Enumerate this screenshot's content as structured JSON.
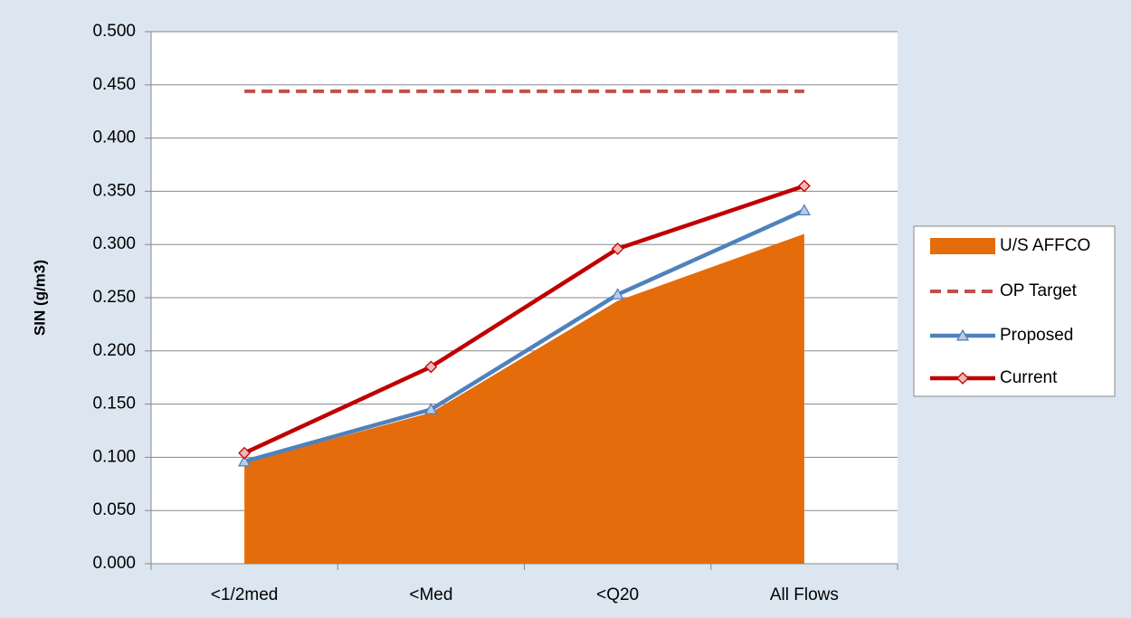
{
  "chart_data": {
    "type": "line",
    "y_label": "SIN (g/m3)",
    "categories": [
      "<1/2med",
      "<Med",
      "<Q20",
      "All Flows"
    ],
    "series": [
      {
        "name": "U/S AFFCO",
        "type": "area",
        "color": "#e46c0a",
        "values": [
          0.095,
          0.142,
          0.247,
          0.31
        ]
      },
      {
        "name": "OP Target",
        "type": "line",
        "color": "#c0504d",
        "dashed": true,
        "values": [
          0.444,
          0.444,
          0.444,
          0.444
        ]
      },
      {
        "name": "Proposed",
        "type": "line",
        "color": "#4f81bd",
        "marker": "triangle",
        "marker_fill": "#b9cde5",
        "values": [
          0.096,
          0.145,
          0.253,
          0.332
        ]
      },
      {
        "name": "Current",
        "type": "line",
        "color": "#c00000",
        "marker": "diamond",
        "marker_fill": "#f2b8b8",
        "values": [
          0.104,
          0.185,
          0.296,
          0.355
        ]
      }
    ],
    "ylim": [
      0,
      0.5
    ],
    "yticks": [
      {
        "value": 0,
        "label": "0.000"
      },
      {
        "value": 0.05,
        "label": "0.050"
      },
      {
        "value": 0.1,
        "label": "0.100"
      },
      {
        "value": 0.15,
        "label": "0.150"
      },
      {
        "value": 0.2,
        "label": "0.200"
      },
      {
        "value": 0.25,
        "label": "0.250"
      },
      {
        "value": 0.3,
        "label": "0.300"
      },
      {
        "value": 0.35,
        "label": "0.350"
      },
      {
        "value": 0.4,
        "label": "0.400"
      },
      {
        "value": 0.45,
        "label": "0.450"
      },
      {
        "value": 0.5,
        "label": "0.500"
      }
    ],
    "grid": true,
    "legend": "right"
  }
}
